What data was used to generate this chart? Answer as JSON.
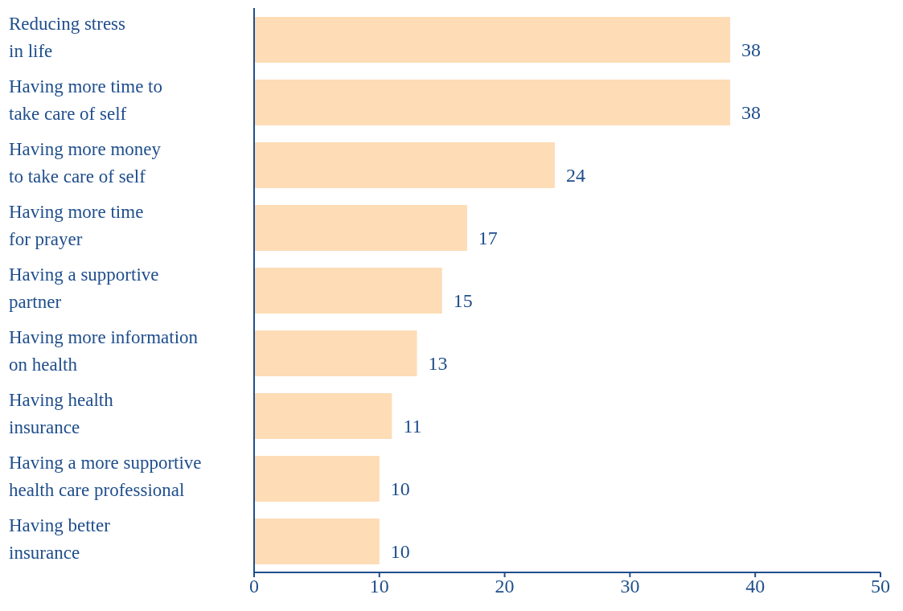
{
  "chart_data": {
    "type": "bar",
    "orientation": "horizontal",
    "categories": [
      "Reducing stress\nin life",
      "Having more time to\ntake care of self",
      "Having more money\nto take care of self",
      "Having more time\nfor prayer",
      "Having a supportive\npartner",
      "Having more information\non health",
      "Having health\ninsurance",
      "Having a more supportive\nhealth care professional",
      "Having better\ninsurance"
    ],
    "values": [
      38,
      38,
      24,
      17,
      15,
      13,
      11,
      10,
      10
    ],
    "color": "#fddcb6",
    "xlim": [
      0,
      50
    ],
    "xticks": [
      0,
      10,
      20,
      30,
      40,
      50
    ],
    "data_labels": true
  }
}
